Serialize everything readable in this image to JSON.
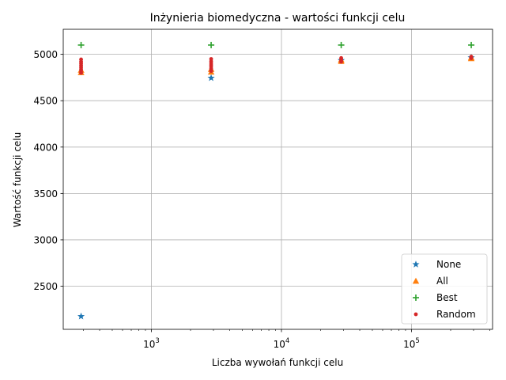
{
  "chart_data": {
    "type": "scatter",
    "title": "Inżynieria biomedyczna - wartości funkcji celu",
    "xlabel": "Liczba wywołań funkcji celu",
    "ylabel": "Wartość funkcji celu",
    "xscale": "log",
    "xlim": [
      210,
      420000
    ],
    "ylim": [
      2035,
      5270
    ],
    "x_ticks": [
      {
        "value": 1000,
        "base": "10",
        "exp": "3"
      },
      {
        "value": 10000,
        "base": "10",
        "exp": "4"
      },
      {
        "value": 100000,
        "base": "10",
        "exp": "5"
      }
    ],
    "y_ticks": [
      2500,
      3000,
      3500,
      4000,
      4500,
      5000
    ],
    "grid": true,
    "legend_position": "lower-right",
    "series": [
      {
        "name": "None",
        "marker": "star",
        "color": "#1f77b4",
        "points": [
          [
            288,
            2175
          ],
          [
            2880,
            4745
          ],
          [
            28800,
            4935
          ],
          [
            288000,
            4965
          ]
        ]
      },
      {
        "name": "All",
        "marker": "triangle",
        "color": "#ff7f0e",
        "points": [
          [
            288,
            4805
          ],
          [
            288,
            4830
          ],
          [
            2880,
            4810
          ],
          [
            2880,
            4840
          ],
          [
            28800,
            4925
          ],
          [
            28800,
            4940
          ],
          [
            288000,
            4955
          ],
          [
            288000,
            4965
          ]
        ]
      },
      {
        "name": "Best",
        "marker": "plus",
        "color": "#2ca02c",
        "points": [
          [
            288,
            5100
          ],
          [
            2880,
            5100
          ],
          [
            28800,
            5100
          ],
          [
            288000,
            5100
          ]
        ]
      },
      {
        "name": "Random",
        "marker": "dot",
        "color": "#d62728",
        "points": [
          [
            288,
            4800
          ],
          [
            288,
            4820
          ],
          [
            288,
            4840
          ],
          [
            288,
            4860
          ],
          [
            288,
            4880
          ],
          [
            288,
            4900
          ],
          [
            288,
            4920
          ],
          [
            288,
            4945
          ],
          [
            2880,
            4820
          ],
          [
            2880,
            4845
          ],
          [
            2880,
            4865
          ],
          [
            2880,
            4885
          ],
          [
            2880,
            4905
          ],
          [
            2880,
            4925
          ],
          [
            2880,
            4950
          ],
          [
            28800,
            4920
          ],
          [
            28800,
            4935
          ],
          [
            28800,
            4950
          ],
          [
            28800,
            4960
          ],
          [
            288000,
            4958
          ],
          [
            288000,
            4968
          ],
          [
            288000,
            4975
          ]
        ]
      }
    ]
  }
}
